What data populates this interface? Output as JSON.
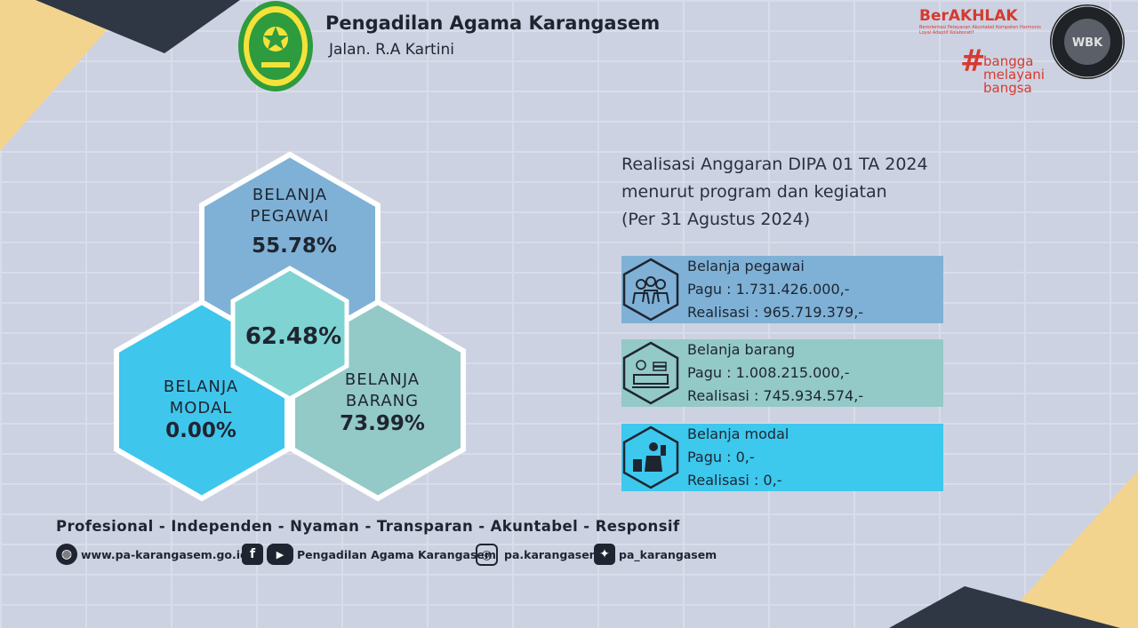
{
  "header": {
    "title": "Pengadilan Agama Karangasem",
    "address": "Jalan. R.A Kartini"
  },
  "logos": {
    "court_logo_text": "PENGADILAN AGAMA KARANGASEM",
    "berakhlak": "BerAKHLAK",
    "berakhlak_tagline": "Berorientasi Pelayanan Akuntabel Kompeten Harmonis Loyal Adaptif Kolaboratif",
    "bangga_lines": [
      "bangga",
      "melayani",
      "bangsa"
    ],
    "zi_ring_text": "KEMENTERIAN PANRB · ZONA INTEGRITAS",
    "zi_center": "WBK"
  },
  "hexagons": {
    "pegawai": {
      "label_line1": "BELANJA",
      "label_line2": "PEGAWAI",
      "percent": "55.78%"
    },
    "total": {
      "percent": "62.48%"
    },
    "modal": {
      "label_line1": "BELANJA",
      "label_line2": "MODAL",
      "percent": "0.00%"
    },
    "barang": {
      "label_line1": "BELANJA",
      "label_line2": "BARANG",
      "percent": "73.99%"
    }
  },
  "report": {
    "title_line1": "Realisasi Anggaran DIPA 01 TA 2024",
    "title_line2": "menurut program dan kegiatan",
    "title_line3": "(Per 31 Agustus 2024)"
  },
  "cards": [
    {
      "name": "Belanja pegawai",
      "pagu": "Pagu : 1.731.426.000,-",
      "realisasi": "Realisasi : 965.719.379,-",
      "icon": "people-icon",
      "color": "#7fb1d6"
    },
    {
      "name": "Belanja barang",
      "pagu": "Pagu : 1.008.215.000,-",
      "realisasi": "Realisasi : 745.934.574,-",
      "icon": "office-desk-icon",
      "color": "#93c9c7"
    },
    {
      "name": "Belanja modal",
      "pagu": "Pagu : 0,-",
      "realisasi": "Realisasi : 0,-",
      "icon": "builder-icon",
      "color": "#3dc8ee"
    }
  ],
  "footer": {
    "motto": "Profesional - Independen - Nyaman - Transparan - Akuntabel - Responsif",
    "website": "www.pa-karangasem.go.id",
    "facebook_youtube": "Pengadilan Agama Karangasem",
    "instagram": "pa.karangasem",
    "twitter": "pa_karangasem"
  },
  "colors": {
    "pegawai_hex": "#7fb1d6",
    "total_hex": "#7fd3d3",
    "modal_hex": "#3fc6ec",
    "barang_hex": "#93c9c7",
    "corner_yellow": "#f2d48e",
    "corner_dark": "#2f3744"
  }
}
